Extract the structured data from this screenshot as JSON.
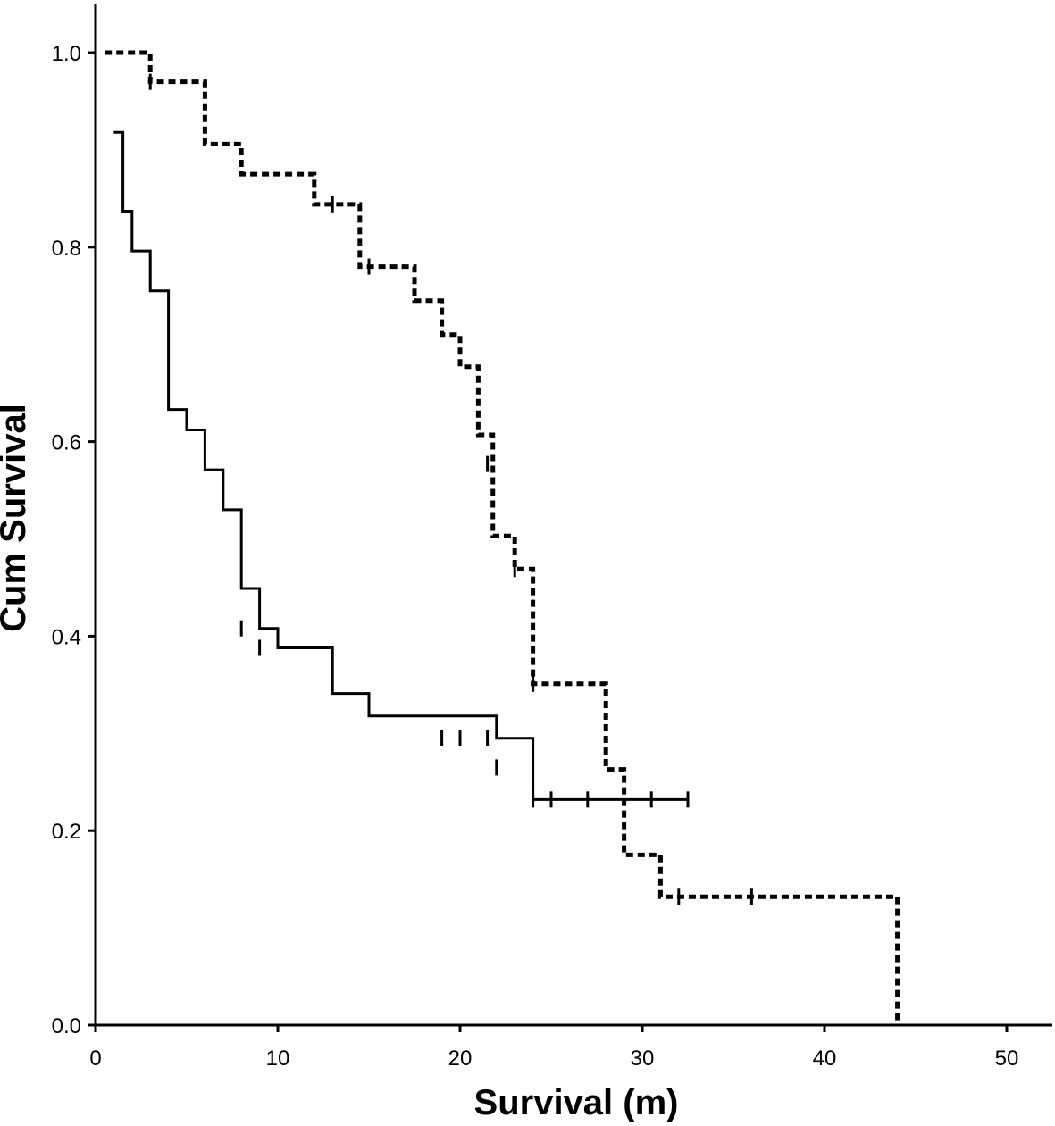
{
  "chart_data": {
    "type": "line",
    "subtype": "kaplan-meier-step",
    "title": "",
    "xlabel": "Survival (m)",
    "ylabel": "Cum Survival",
    "xlim": [
      0,
      52
    ],
    "ylim": [
      0,
      1.0
    ],
    "x_ticks": [
      "0",
      "10",
      "20",
      "30",
      "40",
      "50"
    ],
    "x_tick_values": [
      0,
      10,
      20,
      30,
      40,
      50
    ],
    "y_ticks": [
      "0.0",
      "0.2",
      "0.4",
      "0.6",
      "0.8",
      "1.0"
    ],
    "y_tick_values": [
      0,
      0.2,
      0.4,
      0.6,
      0.8,
      1.0
    ],
    "grid": false,
    "legend": "none",
    "series": [
      {
        "style": "dashed",
        "color": "#000000",
        "steps": [
          [
            0.5,
            1.0
          ],
          [
            3,
            0.97
          ],
          [
            6,
            0.906
          ],
          [
            8,
            0.875
          ],
          [
            12,
            0.844
          ],
          [
            14.5,
            0.78
          ],
          [
            17.5,
            0.745
          ],
          [
            19,
            0.71
          ],
          [
            20,
            0.677
          ],
          [
            21,
            0.607
          ],
          [
            21.8,
            0.503
          ],
          [
            23,
            0.469
          ],
          [
            24,
            0.351
          ],
          [
            28,
            0.263
          ],
          [
            29,
            0.175
          ],
          [
            31,
            0.132
          ],
          [
            44,
            0.0
          ]
        ],
        "end_x": 44,
        "censored": [
          [
            3,
            0.97
          ],
          [
            13,
            0.844
          ],
          [
            15,
            0.78
          ],
          [
            21.5,
            0.577
          ],
          [
            23,
            0.469
          ],
          [
            24,
            0.351
          ],
          [
            32,
            0.132
          ],
          [
            36,
            0.132
          ]
        ]
      },
      {
        "style": "solid",
        "color": "#000000",
        "steps": [
          [
            1,
            0.918
          ],
          [
            1.5,
            0.837
          ],
          [
            2,
            0.796
          ],
          [
            3,
            0.755
          ],
          [
            4,
            0.633
          ],
          [
            5,
            0.612
          ],
          [
            6,
            0.571
          ],
          [
            7,
            0.53
          ],
          [
            8,
            0.449
          ],
          [
            9,
            0.408
          ],
          [
            10,
            0.388
          ],
          [
            13,
            0.341
          ],
          [
            15,
            0.318
          ],
          [
            22,
            0.295
          ],
          [
            24,
            0.265
          ]
        ],
        "start_level": 0.918,
        "end_x": 32.5,
        "end_level": 0.232,
        "censored": [
          [
            8,
            0.408
          ],
          [
            9,
            0.388
          ],
          [
            19,
            0.295
          ],
          [
            20,
            0.295
          ],
          [
            21.5,
            0.295
          ],
          [
            22,
            0.265
          ],
          [
            24,
            0.232
          ],
          [
            25,
            0.232
          ],
          [
            27,
            0.232
          ],
          [
            30.5,
            0.232
          ],
          [
            32.5,
            0.232
          ]
        ]
      }
    ]
  }
}
